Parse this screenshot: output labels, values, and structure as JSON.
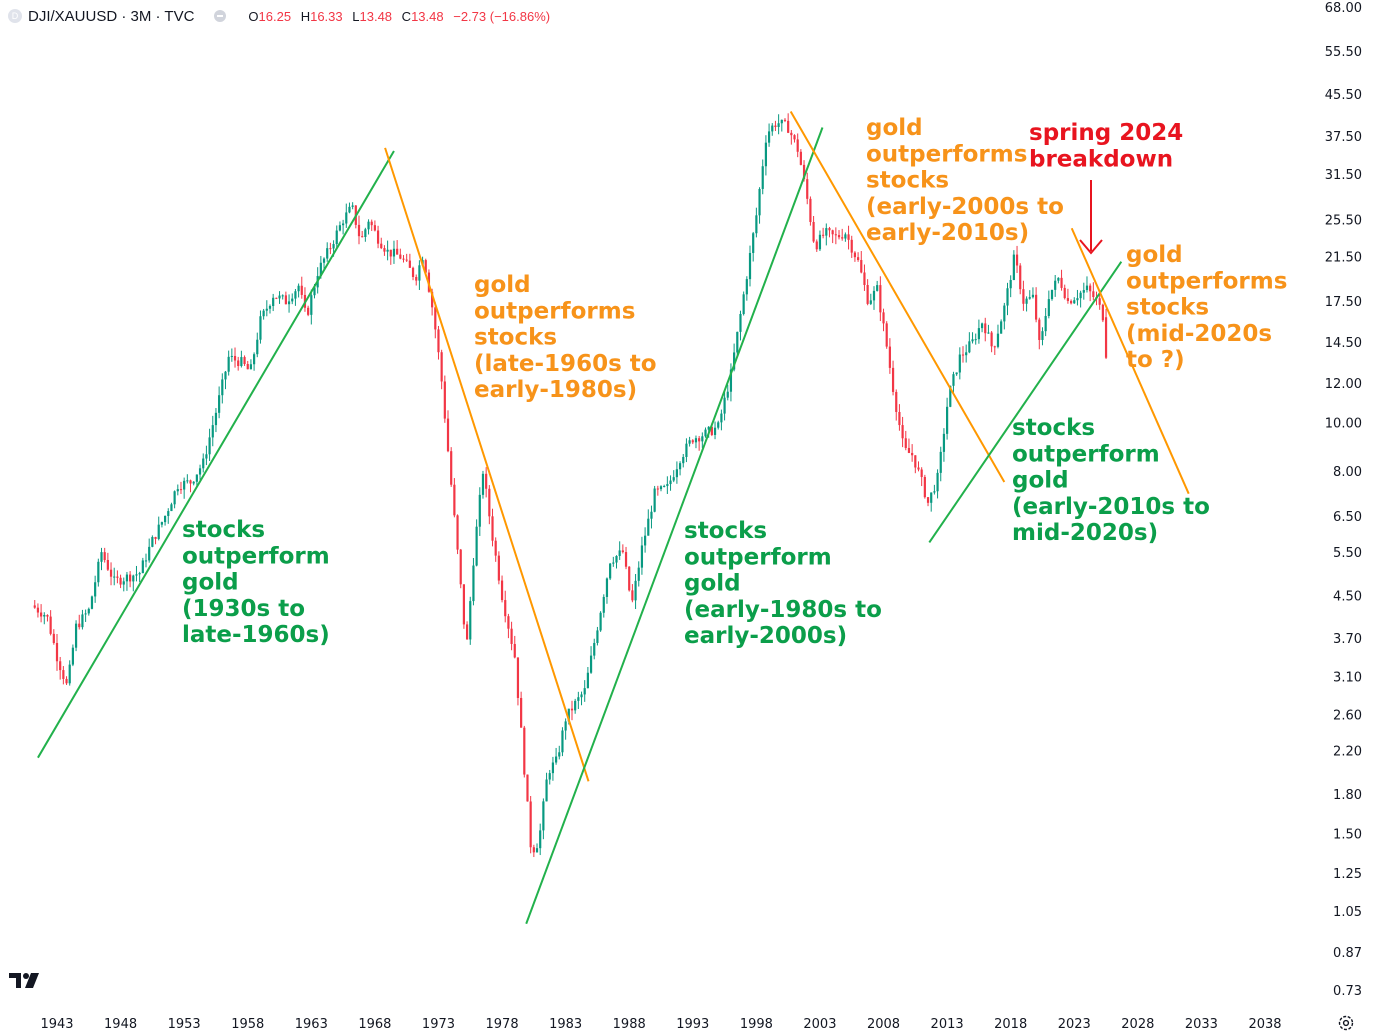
{
  "header": {
    "symbol_icon": "D",
    "symbol": "DJI/XAUUSD · 3M · TVC",
    "ohlc": {
      "o_label": "O",
      "o": "16.25",
      "h_label": "H",
      "h": "16.33",
      "l_label": "L",
      "l": "13.48",
      "c_label": "C",
      "c": "13.48",
      "change": "−2.73 (−16.86%)"
    }
  },
  "colors": {
    "up": "#089981",
    "down": "#f23645",
    "green_line": "#22b14c",
    "orange_line": "#ff9800",
    "green_text": "#0b9e4a",
    "orange_text": "#f7931a",
    "red_text": "#e8141f",
    "axis_text": "#131722"
  },
  "chart_data": {
    "type": "candlestick",
    "title": "",
    "log_scale": true,
    "xlim": [
      1941,
      2040
    ],
    "ylim": [
      0.7,
      70
    ],
    "x_ticks": [
      "1943",
      "1948",
      "1953",
      "1958",
      "1963",
      "1968",
      "1973",
      "1978",
      "1983",
      "1988",
      "1993",
      "1998",
      "2003",
      "2008",
      "2013",
      "2018",
      "2023",
      "2028",
      "2033",
      "2038"
    ],
    "y_ticks": [
      "68.00",
      "55.50",
      "45.50",
      "37.50",
      "31.50",
      "25.50",
      "21.50",
      "17.50",
      "14.50",
      "12.00",
      "10.00",
      "8.00",
      "6.50",
      "5.50",
      "4.50",
      "3.70",
      "3.10",
      "2.60",
      "2.20",
      "1.80",
      "1.50",
      "1.25",
      "1.05",
      "0.87",
      "0.73"
    ],
    "price_path": [
      [
        1941.0,
        4.3
      ],
      [
        1942.2,
        4.1
      ],
      [
        1943.0,
        3.4
      ],
      [
        1943.8,
        2.95
      ],
      [
        1944.5,
        3.9
      ],
      [
        1945.5,
        4.2
      ],
      [
        1946.5,
        5.5
      ],
      [
        1947.5,
        4.8
      ],
      [
        1948.5,
        4.9
      ],
      [
        1949.5,
        5.0
      ],
      [
        1950.5,
        5.8
      ],
      [
        1951.5,
        6.5
      ],
      [
        1952.5,
        7.5
      ],
      [
        1953.5,
        7.6
      ],
      [
        1954.5,
        8.3
      ],
      [
        1955.5,
        10.5
      ],
      [
        1956.5,
        13.5
      ],
      [
        1957.5,
        13.2
      ],
      [
        1958.2,
        12.6
      ],
      [
        1959.0,
        16.0
      ],
      [
        1960.0,
        18.0
      ],
      [
        1961.0,
        17.5
      ],
      [
        1962.0,
        18.8
      ],
      [
        1962.6,
        16.2
      ],
      [
        1963.5,
        20.0
      ],
      [
        1964.5,
        22.5
      ],
      [
        1965.5,
        25.5
      ],
      [
        1966.2,
        27.0
      ],
      [
        1966.9,
        23.0
      ],
      [
        1967.5,
        25.5
      ],
      [
        1968.2,
        23.5
      ],
      [
        1969.0,
        22.0
      ],
      [
        1970.0,
        21.5
      ],
      [
        1971.2,
        19.5
      ],
      [
        1971.8,
        21.8
      ],
      [
        1972.6,
        16.5
      ],
      [
        1973.2,
        12.5
      ],
      [
        1973.8,
        8.5
      ],
      [
        1974.5,
        5.5
      ],
      [
        1975.2,
        3.5
      ],
      [
        1975.8,
        5.5
      ],
      [
        1976.5,
        8.0
      ],
      [
        1977.2,
        6.0
      ],
      [
        1978.0,
        4.5
      ],
      [
        1979.0,
        3.4
      ],
      [
        1979.8,
        1.95
      ],
      [
        1980.3,
        1.38
      ],
      [
        1980.9,
        1.45
      ],
      [
        1981.6,
        2.0
      ],
      [
        1982.3,
        2.1
      ],
      [
        1983.0,
        2.55
      ],
      [
        1983.6,
        2.7
      ],
      [
        1984.5,
        2.9
      ],
      [
        1985.5,
        3.9
      ],
      [
        1986.5,
        5.3
      ],
      [
        1987.5,
        5.5
      ],
      [
        1988.2,
        4.3
      ],
      [
        1989.0,
        5.6
      ],
      [
        1990.0,
        7.2
      ],
      [
        1991.0,
        7.4
      ],
      [
        1992.0,
        8.5
      ],
      [
        1993.0,
        9.3
      ],
      [
        1994.0,
        9.5
      ],
      [
        1995.0,
        9.8
      ],
      [
        1996.0,
        12.5
      ],
      [
        1997.0,
        18.0
      ],
      [
        1998.0,
        26.0
      ],
      [
        1998.8,
        38.0
      ],
      [
        1999.6,
        40.0
      ],
      [
        2000.5,
        39.0
      ],
      [
        2001.3,
        35.0
      ],
      [
        2002.0,
        28.0
      ],
      [
        2002.6,
        22.5
      ],
      [
        2003.4,
        24.0
      ],
      [
        2004.2,
        23.5
      ],
      [
        2005.0,
        24.0
      ],
      [
        2006.0,
        21.0
      ],
      [
        2006.8,
        17.5
      ],
      [
        2007.5,
        18.5
      ],
      [
        2008.2,
        14.5
      ],
      [
        2008.8,
        11.5
      ],
      [
        2009.6,
        8.8
      ],
      [
        2010.3,
        8.6
      ],
      [
        2011.0,
        7.6
      ],
      [
        2011.5,
        6.9
      ],
      [
        2012.3,
        7.8
      ],
      [
        2013.1,
        11.3
      ],
      [
        2014.0,
        13.5
      ],
      [
        2015.0,
        14.5
      ],
      [
        2015.8,
        16.0
      ],
      [
        2016.6,
        14.0
      ],
      [
        2017.5,
        17.0
      ],
      [
        2018.3,
        21.5
      ],
      [
        2019.0,
        17.5
      ],
      [
        2019.8,
        17.8
      ],
      [
        2020.3,
        14.0
      ],
      [
        2021.0,
        18.0
      ],
      [
        2021.8,
        19.5
      ],
      [
        2022.5,
        17.5
      ],
      [
        2023.2,
        18.0
      ],
      [
        2024.0,
        18.5
      ],
      [
        2024.8,
        17.5
      ],
      [
        2025.3,
        16.25
      ],
      [
        2025.6,
        13.48
      ]
    ],
    "trendlines": [
      {
        "color": "green",
        "from": [
          1941.5,
          2.13
        ],
        "to": [
          1969.5,
          35.0
        ]
      },
      {
        "color": "orange",
        "from": [
          1968.8,
          35.5
        ],
        "to": [
          1984.8,
          1.91
        ]
      },
      {
        "color": "green",
        "from": [
          1979.9,
          0.99
        ],
        "to": [
          2003.2,
          39.0
        ]
      },
      {
        "color": "orange",
        "from": [
          2000.7,
          42.0
        ],
        "to": [
          2017.5,
          7.6
        ]
      },
      {
        "color": "green",
        "from": [
          2011.6,
          5.75
        ],
        "to": [
          2026.7,
          21.0
        ]
      },
      {
        "color": "orange",
        "from": [
          2022.8,
          24.5
        ],
        "to": [
          2032.0,
          7.2
        ]
      }
    ],
    "annotations": [
      {
        "color": "green",
        "lines": [
          "stocks",
          "outperform",
          "gold",
          "(1930s to",
          "late-1960s)"
        ]
      },
      {
        "color": "orange",
        "lines": [
          "gold",
          "outperforms",
          "stocks",
          "(late-1960s to",
          "early-1980s)"
        ]
      },
      {
        "color": "green",
        "lines": [
          "stocks",
          "outperform",
          "gold",
          "(early-1980s to",
          "early-2000s)"
        ]
      },
      {
        "color": "orange",
        "lines": [
          "gold",
          "outperforms",
          "stocks",
          "(early-2000s to",
          "early-2010s)"
        ]
      },
      {
        "color": "red",
        "lines": [
          "spring 2024",
          "breakdown"
        ]
      },
      {
        "color": "orange",
        "lines": [
          "gold",
          "outperforms",
          "stocks",
          "(mid-2020s",
          "to ?)"
        ]
      },
      {
        "color": "green",
        "lines": [
          "stocks",
          "outperform",
          "gold",
          "(early-2010s to",
          "mid-2020s)"
        ]
      }
    ]
  }
}
